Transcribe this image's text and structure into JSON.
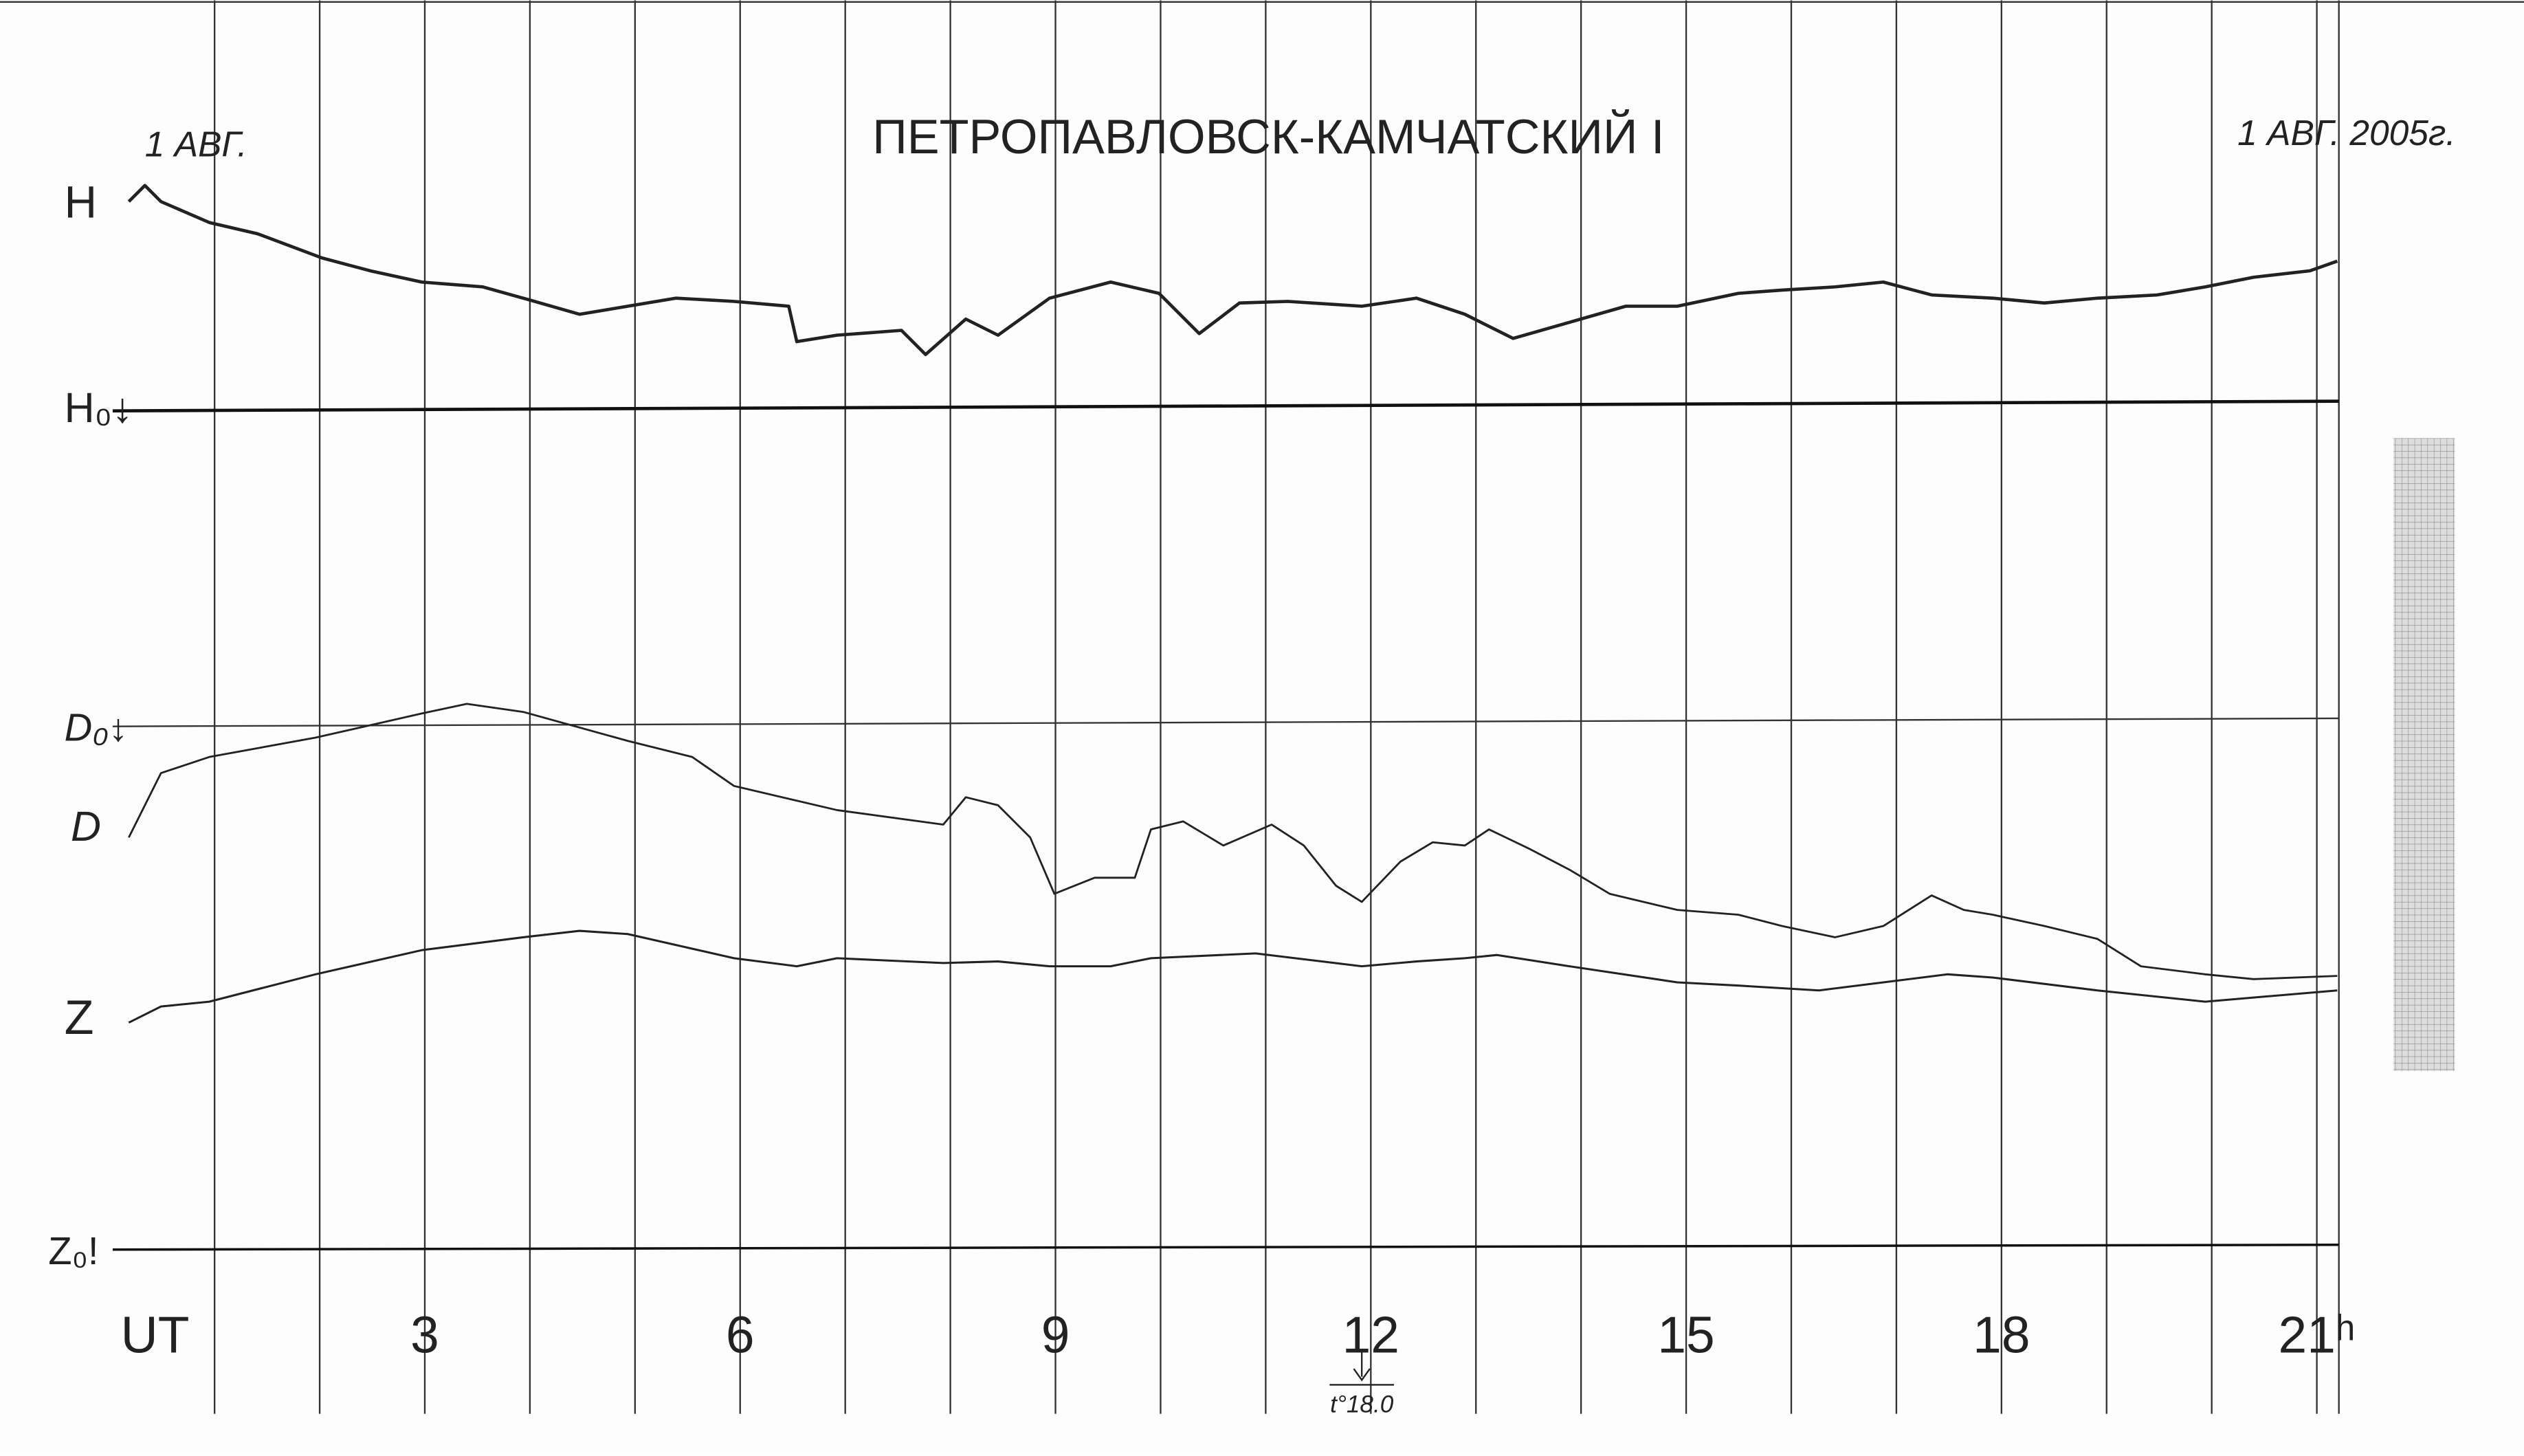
{
  "header": {
    "date_left": "1 АВГ.",
    "title": "ПЕТРОПАВЛОВСК-КАМЧАТСКИЙ I",
    "date_right": "1 АВГ. 2005г."
  },
  "trace_labels": {
    "H": "H",
    "H0": "H₀↓",
    "D0": "D₀↓",
    "D": "D",
    "Z": "Z",
    "Z0": "Z₀!"
  },
  "time_axis": {
    "label": "UT",
    "ticks": [
      "3",
      "6",
      "9",
      "12",
      "15",
      "18",
      "21ʰ"
    ]
  },
  "note": "t°18.0"
}
